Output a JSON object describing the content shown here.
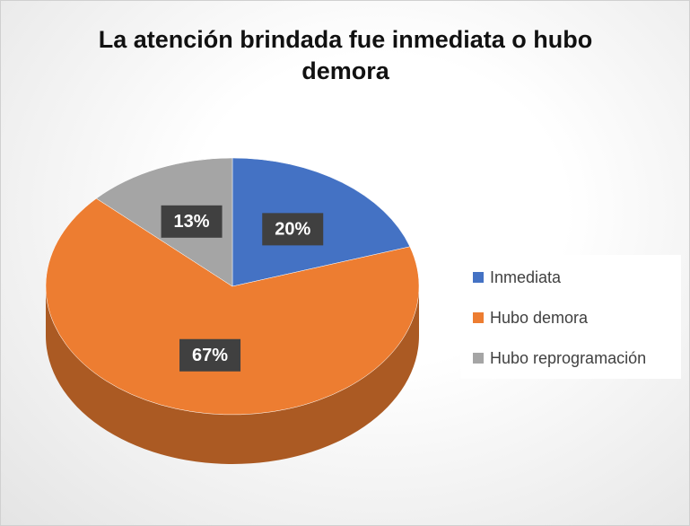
{
  "chart_data": {
    "type": "pie3d",
    "title": "La atención brindada fue inmediata o hubo demora",
    "categories": [
      "Inmediata",
      "Hubo demora",
      "Hubo reprogramación"
    ],
    "values": [
      20,
      67,
      13
    ],
    "value_labels": [
      "20%",
      "67%",
      "13%"
    ],
    "colors": [
      "#4472c4",
      "#ed7d31",
      "#a5a5a5"
    ],
    "legend": "right"
  }
}
